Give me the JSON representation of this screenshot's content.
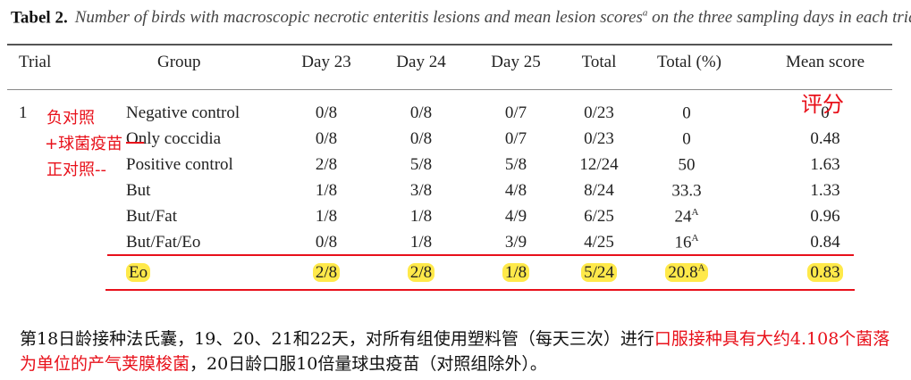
{
  "caption": {
    "label": "Tabel 2.",
    "text": "Number of birds with macroscopic necrotic enteritis lesions and mean lesion scores",
    "sup": "a",
    "text_tail": " on the three sampling days in each trial"
  },
  "headers": {
    "trial": "Trial",
    "group": "Group",
    "day23": "Day 23",
    "day24": "Day 24",
    "day25": "Day 25",
    "total": "Total",
    "total_pct": "Total (%)",
    "mean": "Mean score"
  },
  "rows": [
    {
      "trial": "1",
      "group": "Negative control",
      "d23": "0/8",
      "d24": "0/8",
      "d25": "0/7",
      "total": "0/23",
      "pct": "0",
      "pct_sup": "",
      "mean": "0"
    },
    {
      "trial": "",
      "group": "Only coccidia",
      "d23": "0/8",
      "d24": "0/8",
      "d25": "0/7",
      "total": "0/23",
      "pct": "0",
      "pct_sup": "",
      "mean": "0.48"
    },
    {
      "trial": "",
      "group": "Positive control",
      "d23": "2/8",
      "d24": "5/8",
      "d25": "5/8",
      "total": "12/24",
      "pct": "50",
      "pct_sup": "",
      "mean": "1.63"
    },
    {
      "trial": "",
      "group": "But",
      "d23": "1/8",
      "d24": "3/8",
      "d25": "4/8",
      "total": "8/24",
      "pct": "33.3",
      "pct_sup": "",
      "mean": "1.33"
    },
    {
      "trial": "",
      "group": "But/Fat",
      "d23": "1/8",
      "d24": "1/8",
      "d25": "4/9",
      "total": "6/25",
      "pct": "24",
      "pct_sup": "A",
      "mean": "0.96"
    },
    {
      "trial": "",
      "group": "But/Fat/Eo",
      "d23": "0/8",
      "d24": "1/8",
      "d25": "3/9",
      "total": "4/25",
      "pct": "16",
      "pct_sup": "A",
      "mean": "0.84"
    },
    {
      "trial": "",
      "group": "Eo",
      "d23": "2/8",
      "d24": "2/8",
      "d25": "1/8",
      "total": "5/24",
      "pct": "20.8",
      "pct_sup": "A",
      "mean": "0.83"
    }
  ],
  "annotations": {
    "neg": "负对照",
    "cocc": "+球菌疫苗",
    "pos": "正对照--",
    "score": "评分"
  },
  "footnote": {
    "part1": "第18日龄接种法氏囊，19、20、21和22天，对所有组使用塑料管（每天三次）进行",
    "red": "口服接种具有大约4.108个菌落为单位的产气荚膜梭菌",
    "part2": "，20日龄口服10倍量球虫疫苗（对照组除外）。"
  },
  "colors": {
    "annotation": "#e8101a",
    "highlight": "#ffe94a"
  }
}
